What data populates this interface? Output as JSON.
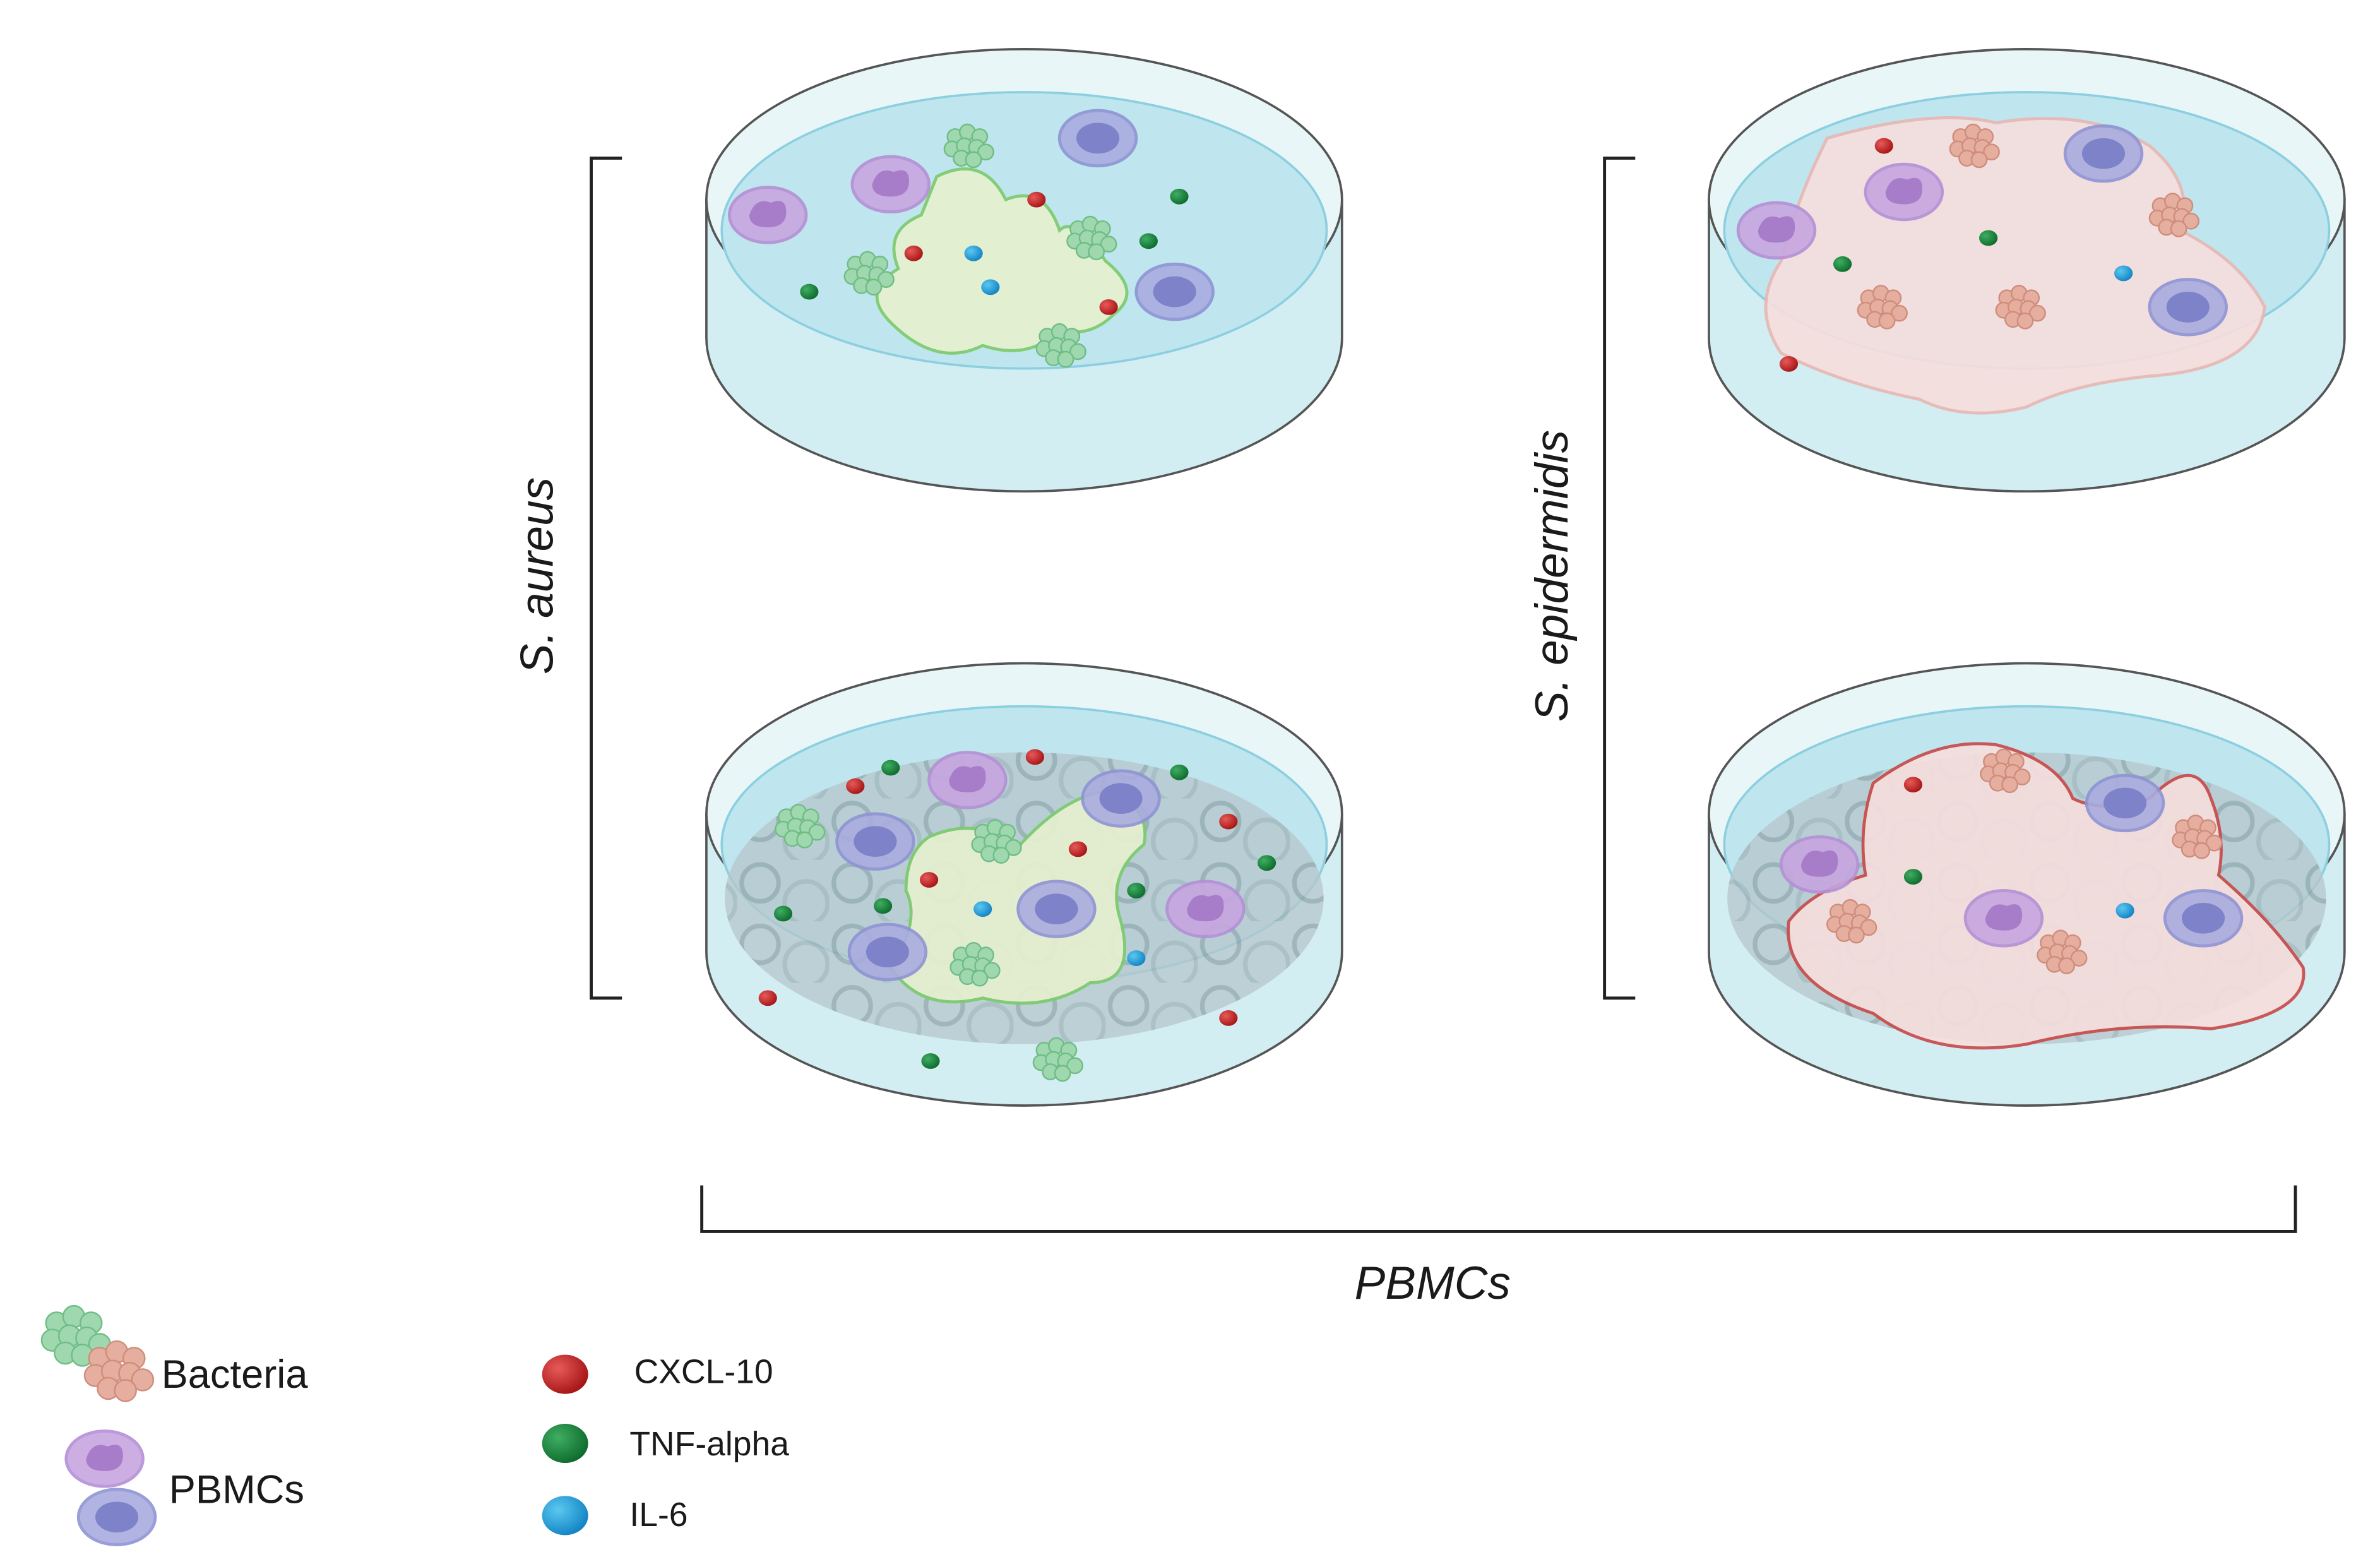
{
  "labels": {
    "left_group": "S. aureus",
    "right_group": "S. epidermidis",
    "bottom_group": "PBMCs"
  },
  "legend": {
    "bacteria": "Bacteria",
    "pbmcs": "PBMCs",
    "cxcl10": "CXCL-10",
    "tnf_alpha": "TNF-alpha",
    "il6": "IL-6"
  }
}
